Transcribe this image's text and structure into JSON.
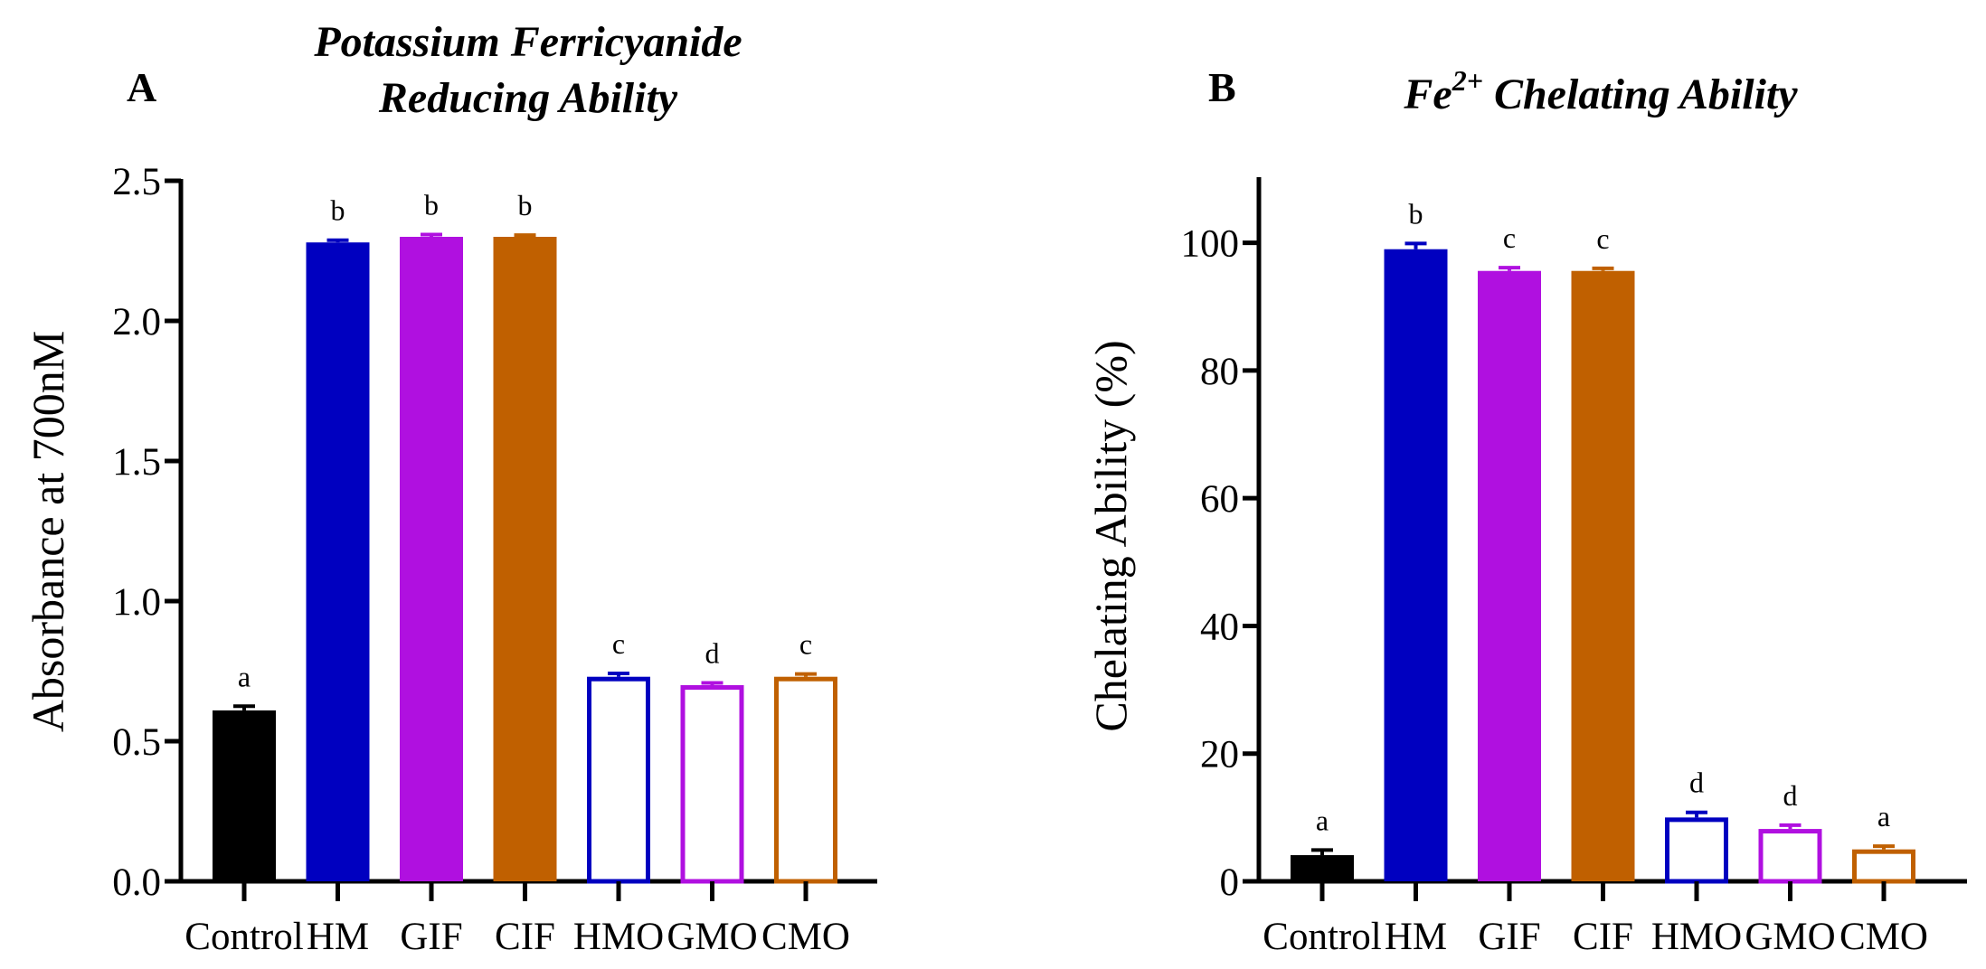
{
  "colors": {
    "axis": "#000000",
    "Control": "#000000",
    "HM": "#0000c0",
    "GIF": "#b010e0",
    "CIF": "#c06000",
    "HMO": "#0000c0",
    "GMO": "#b010e0",
    "CMO": "#c06000"
  },
  "chart_data": [
    {
      "panel": "A",
      "type": "bar",
      "title_lines": [
        "Potassium Ferricyanide",
        "Reducing Ability"
      ],
      "xlabel": "",
      "ylabel": "Absorbance at 700nM",
      "ylim": [
        0,
        2.5
      ],
      "yticks": [
        "0.0",
        "0.5",
        "1.0",
        "1.5",
        "2.0",
        "2.5"
      ],
      "grid": false,
      "categories": [
        "Control",
        "HM",
        "GIF",
        "CIF",
        "HMO",
        "GMO",
        "CMO"
      ],
      "values": [
        0.61,
        2.28,
        2.3,
        2.3,
        0.73,
        0.7,
        0.73
      ],
      "errors": [
        0.015,
        0.008,
        0.008,
        0.006,
        0.012,
        0.008,
        0.01
      ],
      "filled": [
        true,
        true,
        true,
        true,
        false,
        false,
        false
      ],
      "significance_letters": [
        "a",
        "b",
        "b",
        "b",
        "c",
        "d",
        "c"
      ]
    },
    {
      "panel": "B",
      "type": "bar",
      "title": "Fe",
      "title_superscript": "2+",
      "title_suffix": " Chelating Ability",
      "xlabel": "",
      "ylabel": "Chelating Ability (%)",
      "ylim": [
        0,
        110
      ],
      "yticks": [
        "0",
        "20",
        "40",
        "60",
        "80",
        "100"
      ],
      "grid": false,
      "categories": [
        "Control",
        "HM",
        "GIF",
        "CIF",
        "HMO",
        "GMO",
        "CMO"
      ],
      "values": [
        4.1,
        99.0,
        95.6,
        95.6,
        10.0,
        8.2,
        5.0
      ],
      "errors": [
        0.8,
        0.9,
        0.5,
        0.4,
        0.8,
        0.6,
        0.5
      ],
      "filled": [
        true,
        true,
        true,
        true,
        false,
        false,
        false
      ],
      "significance_letters": [
        "a",
        "b",
        "c",
        "c",
        "d",
        "d",
        "a"
      ]
    }
  ]
}
